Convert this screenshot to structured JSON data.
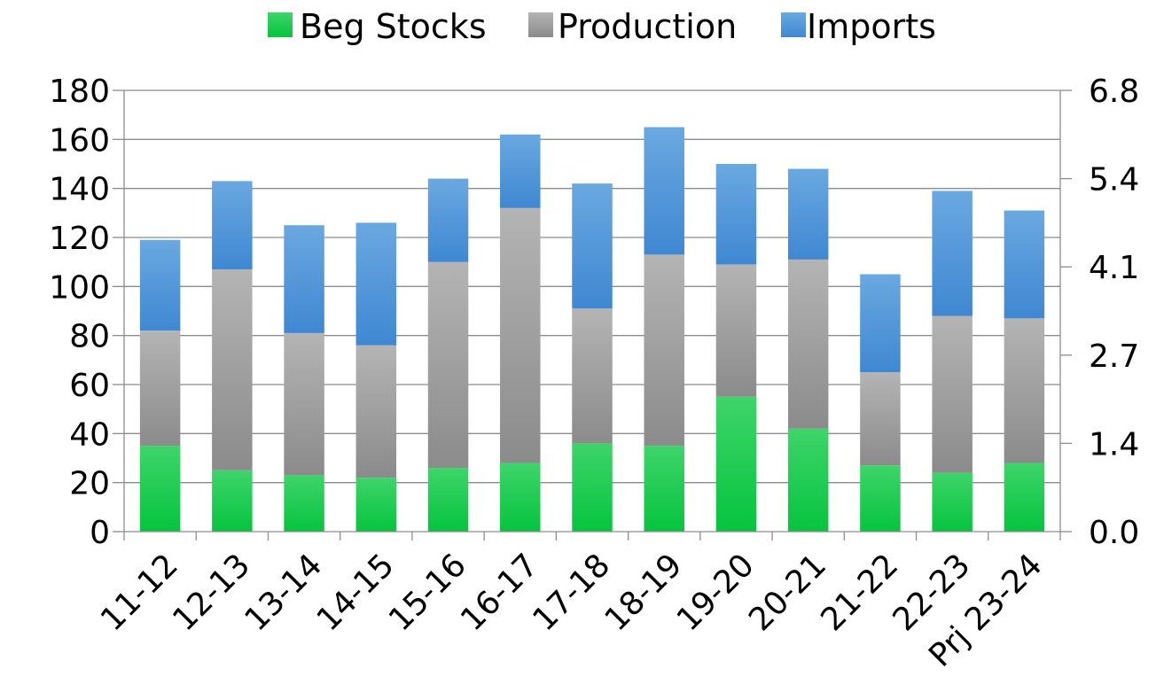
{
  "chart_data": {
    "type": "bar",
    "stacked": true,
    "categories": [
      "11-12",
      "12-13",
      "13-14",
      "14-15",
      "15-16",
      "16-17",
      "17-18",
      "18-19",
      "19-20",
      "20-21",
      "21-22",
      "22-23",
      "Prj 23-24"
    ],
    "series": [
      {
        "name": "Beg Stocks",
        "color": "#13c94a",
        "values": [
          35,
          25,
          23,
          22,
          26,
          28,
          36,
          35,
          55,
          42,
          27,
          24,
          28
        ]
      },
      {
        "name": "Production",
        "color": "#9a9a9a",
        "values": [
          47,
          82,
          58,
          54,
          84,
          104,
          55,
          78,
          54,
          69,
          38,
          64,
          59
        ]
      },
      {
        "name": "Imports",
        "color": "#4a90d8",
        "values": [
          37,
          36,
          44,
          50,
          34,
          30,
          51,
          52,
          41,
          37,
          40,
          51,
          44
        ]
      }
    ],
    "y_left": {
      "min": 0,
      "max": 180,
      "ticks": [
        "0",
        "20",
        "40",
        "60",
        "80",
        "100",
        "120",
        "140",
        "160",
        "180"
      ]
    },
    "y_right": {
      "ticks": [
        "0.0",
        "1.4",
        "2.7",
        "4.1",
        "5.4",
        "6.8"
      ]
    },
    "grid": true,
    "legend_position": "top"
  }
}
